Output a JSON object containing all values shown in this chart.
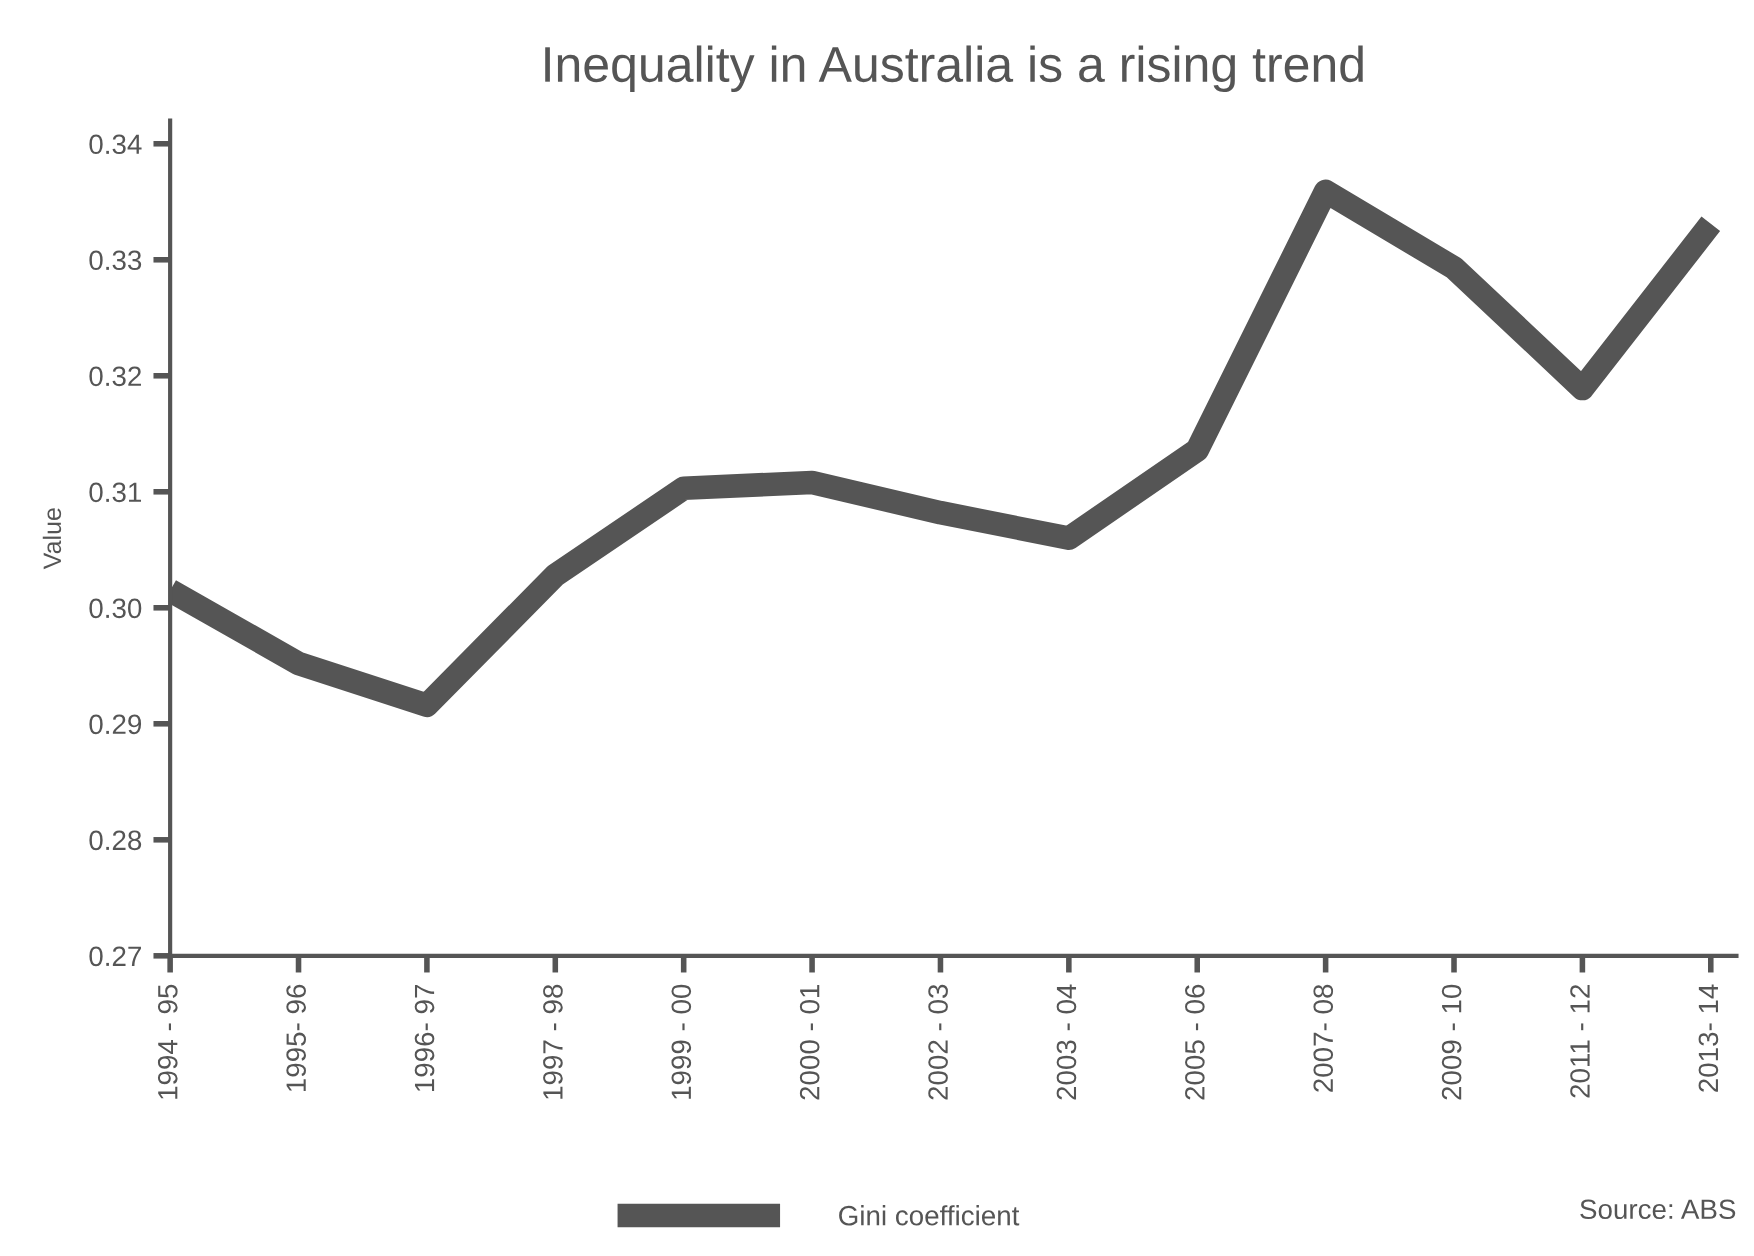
{
  "chart_data": {
    "type": "line",
    "title": "Inequality in Australia is a rising trend",
    "ylabel": "Value",
    "categories": [
      "1994 - 95",
      "1995- 96",
      "1996- 97",
      "1997 - 98",
      "1999 - 00",
      "2000 - 01",
      "2002 - 03",
      "2003 - 04",
      "2005 - 06",
      "2007- 08",
      "2009 - 10",
      "2011 - 12",
      "2013- 14"
    ],
    "series": [
      {
        "name": "Gini coefficient",
        "color": "#555555",
        "values": [
          0.3015,
          0.2952,
          0.2916,
          0.3028,
          0.3103,
          0.3108,
          0.3082,
          0.306,
          0.3136,
          0.3359,
          0.3293,
          0.3189,
          0.3331
        ]
      }
    ],
    "ylim": [
      0.27,
      0.342
    ],
    "yticks": [
      0.27,
      0.28,
      0.29,
      {
        "value": 0.3,
        "label": "0.30"
      },
      0.31,
      0.32,
      0.33,
      0.34
    ],
    "grid": false,
    "legend": "bottom",
    "marker": "none",
    "line_style": "solid",
    "annotations": [
      "Source: ABS"
    ]
  }
}
